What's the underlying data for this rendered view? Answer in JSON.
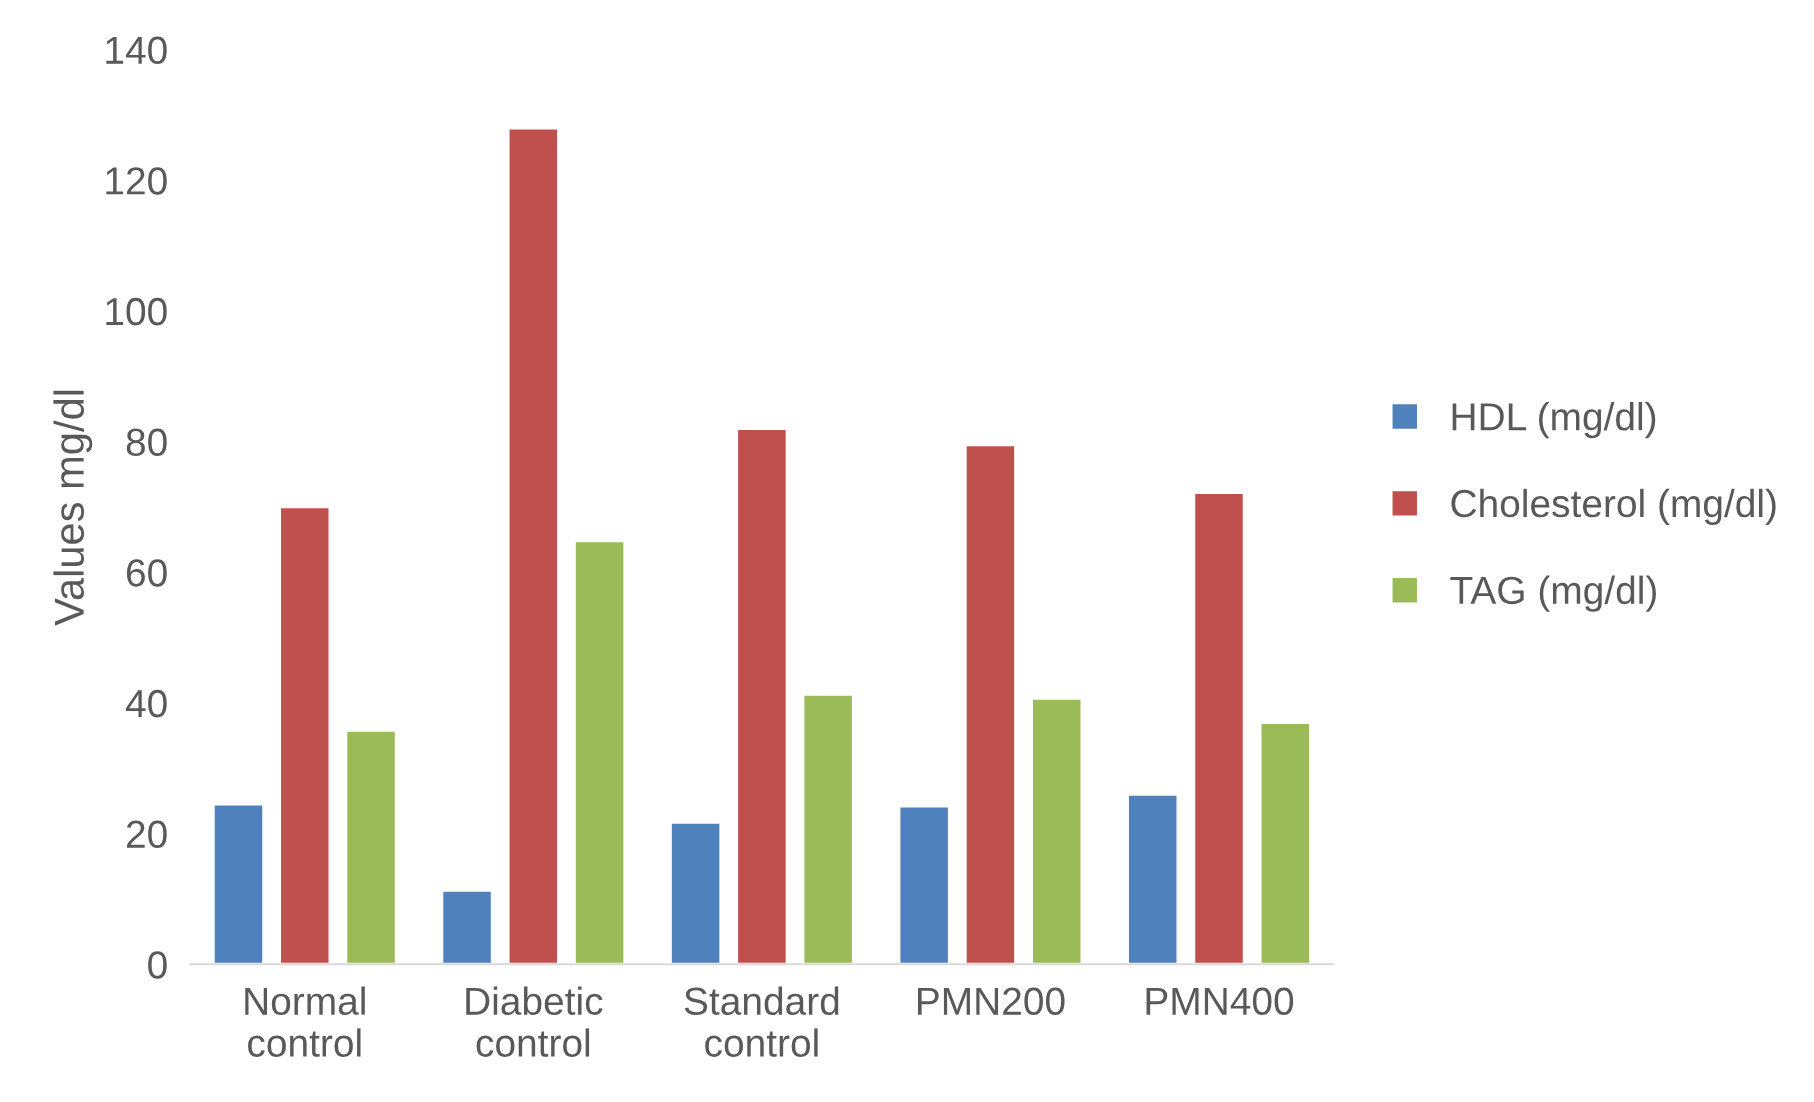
{
  "chart_data": {
    "type": "bar",
    "ylabel": "Values mg/dl",
    "categories": [
      "Normal\ncontrol",
      "Diabetic\ncontrol",
      "Standard\ncontrol",
      "PMN200",
      "PMN400"
    ],
    "series": [
      {
        "name": "HDL (mg/dl)",
        "color": "#4f81bd",
        "values": [
          24.5,
          11.3,
          21.7,
          24.2,
          26
        ]
      },
      {
        "name": "Cholesterol (mg/dl)",
        "color": "#c0504d",
        "values": [
          70,
          128,
          82,
          79.5,
          72.2
        ]
      },
      {
        "name": "TAG (mg/dl)",
        "color": "#9bbb59",
        "values": [
          35.8,
          64.8,
          41.3,
          40.7,
          37
        ]
      }
    ],
    "ylim": [
      0,
      140
    ],
    "yticks": [
      0,
      20,
      40,
      60,
      80,
      100,
      120,
      140
    ],
    "grid": false,
    "legend": "right"
  }
}
